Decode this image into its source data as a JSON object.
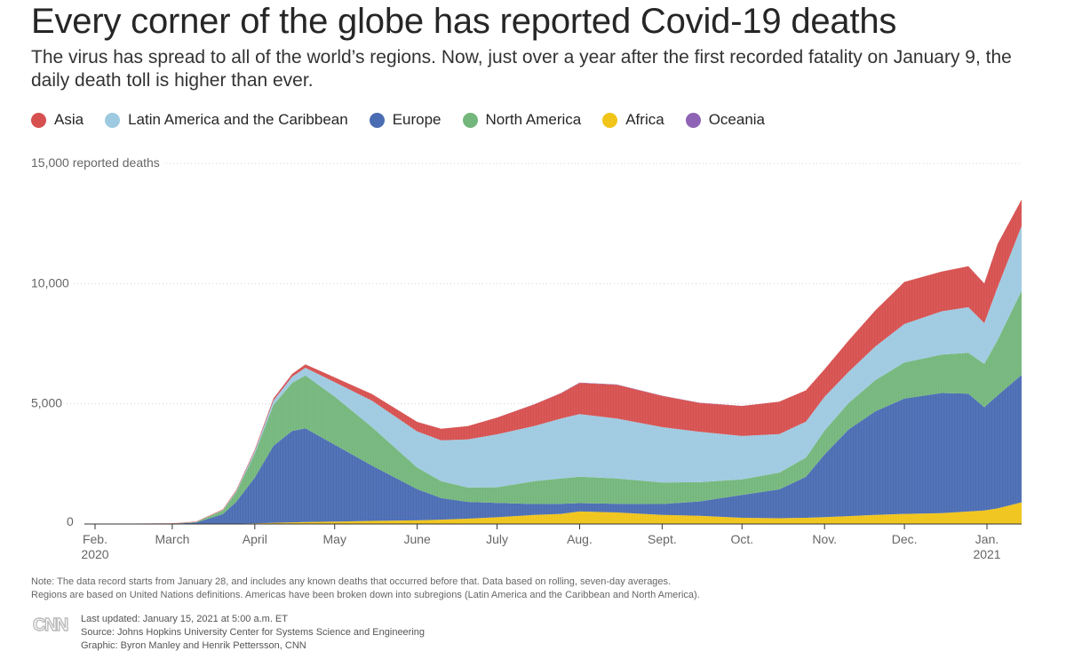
{
  "header": {
    "title": "Every corner of the globe has reported Covid-19 deaths",
    "subtitle": "The virus has spread to all of the world’s regions. Now, just over a year after the first recorded fatality on January 9, the daily death toll is higher than ever."
  },
  "legend": [
    {
      "label": "Asia",
      "color": "#d6504f"
    },
    {
      "label": "Latin America and the Caribbean",
      "color": "#9ecae1"
    },
    {
      "label": "Europe",
      "color": "#4a6cb3"
    },
    {
      "label": "North America",
      "color": "#74b77c"
    },
    {
      "label": "Africa",
      "color": "#f0c419"
    },
    {
      "label": "Oceania",
      "color": "#8e63b5"
    }
  ],
  "chart_data": {
    "type": "area",
    "ylabel": "reported deaths",
    "ylim": [
      0,
      15000
    ],
    "y_ticks": [
      {
        "value": 0,
        "label": "0"
      },
      {
        "value": 5000,
        "label": "5,000"
      },
      {
        "value": 10000,
        "label": "10,000"
      },
      {
        "value": 15000,
        "label": "15,000 reported deaths"
      }
    ],
    "x_ticks": [
      {
        "date": "2020-02-01",
        "label": "Feb.",
        "sublabel": "2020"
      },
      {
        "date": "2020-03-01",
        "label": "March"
      },
      {
        "date": "2020-04-01",
        "label": "April"
      },
      {
        "date": "2020-05-01",
        "label": "May"
      },
      {
        "date": "2020-06-01",
        "label": "June"
      },
      {
        "date": "2020-07-01",
        "label": "July"
      },
      {
        "date": "2020-08-01",
        "label": "Aug."
      },
      {
        "date": "2020-09-01",
        "label": "Sept."
      },
      {
        "date": "2020-10-01",
        "label": "Oct."
      },
      {
        "date": "2020-11-01",
        "label": "Nov."
      },
      {
        "date": "2020-12-01",
        "label": "Dec."
      },
      {
        "date": "2021-01-01",
        "label": "Jan.",
        "sublabel": "2021"
      }
    ],
    "x": [
      "2020-01-28",
      "2020-02-15",
      "2020-03-01",
      "2020-03-10",
      "2020-03-20",
      "2020-03-25",
      "2020-04-01",
      "2020-04-08",
      "2020-04-15",
      "2020-04-20",
      "2020-05-01",
      "2020-05-15",
      "2020-06-01",
      "2020-06-10",
      "2020-06-20",
      "2020-07-01",
      "2020-07-15",
      "2020-07-25",
      "2020-08-01",
      "2020-08-15",
      "2020-09-01",
      "2020-09-15",
      "2020-10-01",
      "2020-10-15",
      "2020-10-25",
      "2020-11-01",
      "2020-11-10",
      "2020-11-20",
      "2020-12-01",
      "2020-12-15",
      "2020-12-25",
      "2020-12-31",
      "2021-01-05",
      "2021-01-14"
    ],
    "series": [
      {
        "name": "Africa",
        "values": [
          0,
          0,
          0,
          0,
          10,
          15,
          30,
          50,
          70,
          80,
          100,
          130,
          150,
          180,
          220,
          280,
          380,
          420,
          520,
          480,
          380,
          340,
          260,
          240,
          260,
          290,
          330,
          380,
          420,
          450,
          520,
          560,
          650,
          900
        ]
      },
      {
        "name": "Europe",
        "values": [
          0,
          0,
          10,
          60,
          400,
          900,
          1900,
          3200,
          3800,
          3900,
          3200,
          2300,
          1300,
          900,
          700,
          600,
          450,
          420,
          350,
          360,
          450,
          600,
          950,
          1200,
          1700,
          2600,
          3600,
          4300,
          4800,
          5000,
          4900,
          4300,
          4700,
          5300
        ]
      },
      {
        "name": "North America",
        "values": [
          0,
          0,
          5,
          20,
          150,
          400,
          1000,
          1700,
          2000,
          2200,
          2000,
          1600,
          900,
          700,
          600,
          650,
          950,
          1050,
          1100,
          1050,
          900,
          800,
          650,
          700,
          800,
          1000,
          1100,
          1300,
          1500,
          1600,
          1700,
          1800,
          2300,
          3500
        ]
      },
      {
        "name": "Latin America and the Caribbean",
        "values": [
          0,
          0,
          0,
          5,
          20,
          50,
          100,
          180,
          260,
          320,
          600,
          1100,
          1500,
          1700,
          2000,
          2200,
          2300,
          2500,
          2600,
          2500,
          2300,
          2100,
          1800,
          1600,
          1500,
          1400,
          1300,
          1400,
          1600,
          1800,
          1900,
          1700,
          2200,
          2700
        ]
      },
      {
        "name": "Asia",
        "values": [
          15,
          20,
          15,
          15,
          30,
          40,
          60,
          90,
          110,
          140,
          200,
          280,
          400,
          480,
          550,
          700,
          900,
          1050,
          1300,
          1400,
          1300,
          1200,
          1250,
          1350,
          1300,
          1150,
          1300,
          1500,
          1750,
          1650,
          1700,
          1650,
          1800,
          1100
        ]
      },
      {
        "name": "Oceania",
        "values": [
          0,
          0,
          0,
          0,
          0,
          0,
          2,
          3,
          3,
          3,
          1,
          0,
          0,
          0,
          0,
          1,
          5,
          10,
          15,
          15,
          10,
          5,
          2,
          1,
          1,
          1,
          1,
          1,
          1,
          1,
          1,
          1,
          1,
          1
        ]
      }
    ]
  },
  "footer": {
    "note_line1": "Note: The data record starts from January 28, and includes any known deaths that occurred before that. Data based on rolling, seven-day averages.",
    "note_line2": "Regions are based on United Nations definitions. Americas have been broken down into subregions (Latin America and the Caribbean and North America).",
    "logo_text": "CNN",
    "updated": "Last updated: January 15, 2021 at 5:00 a.m. ET",
    "source": "Source: Johns Hopkins University Center for Systems Science and Engineering",
    "graphic": "Graphic: Byron Manley and Henrik Pettersson, CNN"
  }
}
